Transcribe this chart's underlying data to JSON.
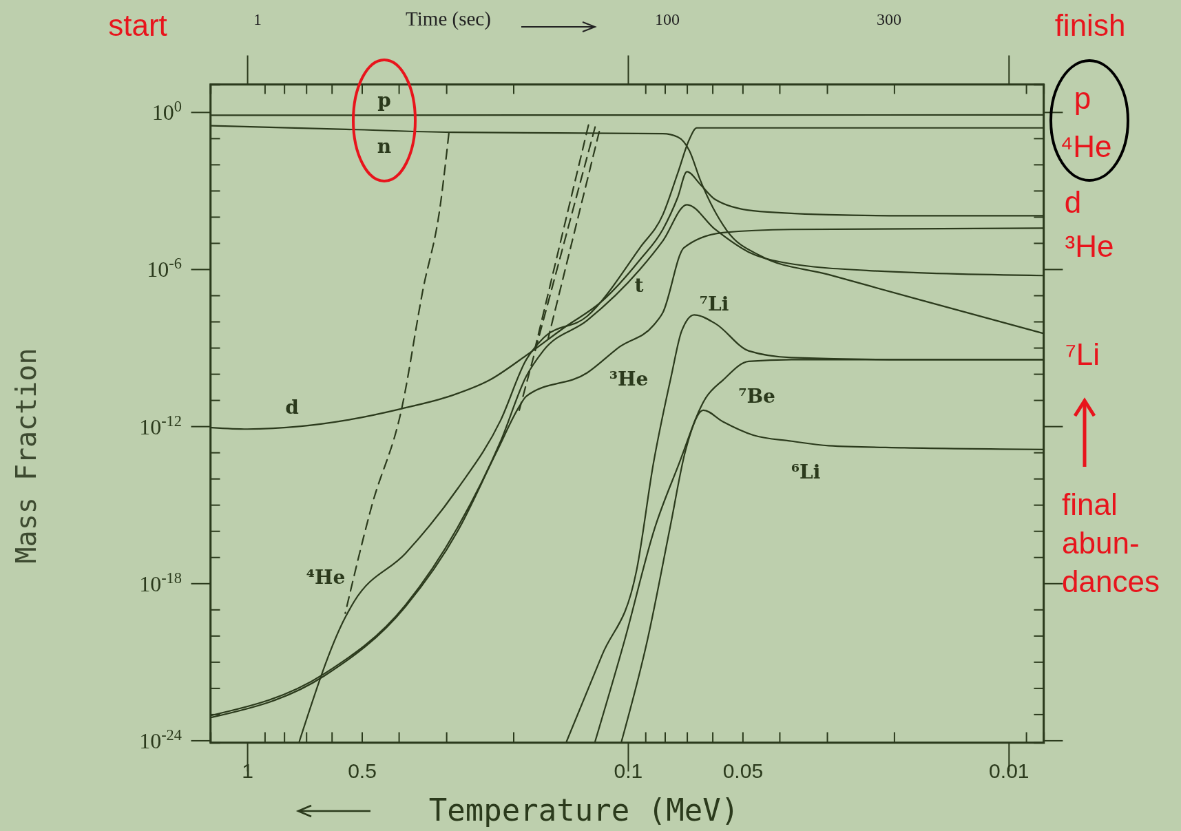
{
  "chart_data": {
    "type": "line",
    "log": "xy",
    "xlabel": "Temperature (MeV)",
    "ylabel": "Mass Fraction",
    "xlim": [
      1.25,
      0.0081
    ],
    "ylim": [
      8.3e-25,
      11.5
    ],
    "xticks": [
      1,
      {
        "value": 0.9,
        "label": null
      },
      {
        "value": 0.8,
        "label": null
      },
      {
        "value": 0.7,
        "label": null
      },
      {
        "value": 0.6,
        "label": null
      },
      0.5,
      {
        "value": 0.4,
        "label": null
      },
      {
        "value": 0.3,
        "label": null
      },
      {
        "value": 0.2,
        "label": null
      },
      0.1,
      {
        "value": 0.09,
        "label": null
      },
      {
        "value": 0.08,
        "label": null
      },
      {
        "value": 0.07,
        "label": null
      },
      {
        "value": 0.06,
        "label": null
      },
      0.05,
      {
        "value": 0.04,
        "label": null
      },
      {
        "value": 0.03,
        "label": null
      },
      {
        "value": 0.02,
        "label": null
      },
      0.01,
      {
        "value": 0.009,
        "label": null
      }
    ],
    "yticks": [
      {
        "value": 1,
        "label": "10$^{0}$"
      },
      {
        "value": 0.1,
        "label": null
      },
      {
        "value": 0.01,
        "label": null
      },
      {
        "value": 0.001,
        "label": null
      },
      {
        "value": 0.0001,
        "label": null
      },
      {
        "value": 1e-05,
        "label": null
      },
      {
        "value": 1e-06,
        "label": "10$^{-6}$"
      },
      {
        "value": 1e-07,
        "label": null
      },
      {
        "value": 1e-08,
        "label": null
      },
      {
        "value": 1e-09,
        "label": null
      },
      {
        "value": 1e-10,
        "label": null
      },
      {
        "value": 1e-11,
        "label": null
      },
      {
        "value": 1e-12,
        "label": "10$^{-12}$"
      },
      {
        "value": 1e-13,
        "label": null
      },
      {
        "value": 1e-14,
        "label": null
      },
      {
        "value": 1e-15,
        "label": null
      },
      {
        "value": 1e-16,
        "label": null
      },
      {
        "value": 1e-17,
        "label": null
      },
      {
        "value": 1e-18,
        "label": "10$^{-18}$"
      },
      {
        "value": 1e-19,
        "label": null
      },
      {
        "value": 1e-20,
        "label": null
      },
      {
        "value": 1e-21,
        "label": null
      },
      {
        "value": 1e-22,
        "label": null
      },
      {
        "value": 1e-23,
        "label": null
      },
      {
        "value": 1e-24,
        "label": "10$^{-24}$"
      }
    ],
    "series": [
      {
        "name": "p",
        "color": "#2b3a1c",
        "x": [
          1.24,
          0.1,
          0.0081
        ],
        "values": [
          0.76,
          0.77,
          0.78
        ]
      },
      {
        "name": "n",
        "color": "#2b3a1c",
        "x": [
          1.24,
          0.55,
          0.29,
          0.081,
          0.074,
          0.069,
          0.0645,
          0.055,
          0.0448,
          0.0297,
          0.0172,
          0.0081
        ],
        "values": [
          0.3,
          0.22,
          0.17,
          0.15,
          0.112,
          0.034,
          0.0024,
          3e-05,
          3.2e-06,
          6.2e-07,
          6.9e-08,
          3.5e-09
        ]
      },
      {
        "name": "d",
        "color": "#2b3a1c",
        "x": [
          1.24,
          1.0,
          0.723,
          0.55,
          0.393,
          0.29,
          0.231,
          0.185,
          0.147,
          0.117,
          0.093,
          0.081,
          0.074,
          0.07,
          0.0645,
          0.059,
          0.0469,
          0.0297,
          0.0188,
          0.0081
        ],
        "values": [
          8.9e-13,
          7.8e-13,
          1e-12,
          1.7e-12,
          4.7e-12,
          1.5e-11,
          5.8e-11,
          5.1e-10,
          5.9e-09,
          6e-08,
          2.3e-06,
          3.3e-05,
          0.00056,
          0.0053,
          0.0017,
          0.00046,
          0.00017,
          0.00012,
          0.00011,
          0.00011
        ]
      },
      {
        "name": "t",
        "color": "#2b3a1c",
        "x": [
          1.24,
          0.628,
          0.384,
          0.28,
          0.216,
          0.185,
          0.167,
          0.128,
          0.093,
          0.081,
          0.07,
          0.059,
          0.0482,
          0.0391,
          0.0221,
          0.0081
        ],
        "values": [
          9.1e-24,
          3.5e-22,
          1.5e-19,
          1.4e-16,
          2.7e-13,
          8.1e-11,
          7.6e-10,
          1.1e-08,
          9.8e-07,
          1.2e-05,
          0.00029,
          3.3e-05,
          4.5e-06,
          1.8e-06,
          8.5e-07,
          5.7e-07
        ]
      },
      {
        "name": "³He",
        "color": "#2b3a1c",
        "x": [
          1.24,
          0.628,
          0.384,
          0.28,
          0.221,
          0.193,
          0.185,
          0.128,
          0.105,
          0.0857,
          0.081,
          0.0713,
          0.0563,
          0.0372,
          0.0081
        ],
        "values": [
          7.6e-24,
          2.9e-22,
          1.3e-19,
          1e-16,
          1.1e-13,
          5.7e-12,
          1.4e-11,
          1.1e-10,
          1.1e-09,
          7.2e-09,
          2.2e-08,
          6.6e-06,
          2.5e-05,
          3.3e-05,
          3.7e-05
        ]
      },
      {
        "name": "⁴He",
        "color": "#2b3a1c",
        "x": [
          0.73,
          0.553,
          0.523,
          0.384,
          0.28,
          0.216,
          0.185,
          0.167,
          0.128,
          0.093,
          0.081,
          0.074,
          0.069,
          0.066,
          0.0469,
          0.0081
        ],
        "values": [
          9.1e-25,
          5e-20,
          2.1e-19,
          1.4e-17,
          4.2e-15,
          1.7e-12,
          3.5e-10,
          2.3e-09,
          1.6e-08,
          6.6e-06,
          0.00012,
          0.0047,
          0.091,
          0.25,
          0.25,
          0.25
        ]
      },
      {
        "name": "⁷Li",
        "color": "#2b3a1c",
        "x": [
          0.145,
          0.117,
          0.095,
          0.0857,
          0.077,
          0.0723,
          0.067,
          0.0589,
          0.0482,
          0.0372,
          0.0188,
          0.0081
        ],
        "values": [
          9.1e-25,
          1.8e-21,
          3e-18,
          4e-14,
          8.1e-11,
          4.3e-09,
          1.8e-08,
          8.3e-09,
          7.6e-10,
          4.2e-10,
          3.5e-10,
          3.5e-10
        ]
      },
      {
        "name": "⁷Be",
        "color": "#2b3a1c",
        "x": [
          0.122,
          0.102,
          0.0849,
          0.074,
          0.0625,
          0.0563,
          0.0482,
          0.0372,
          0.0188,
          0.0081
        ],
        "values": [
          9.1e-25,
          6.9e-21,
          1.4e-16,
          2.8e-14,
          1.2e-11,
          5.8e-11,
          3e-10,
          3.5e-10,
          3.5e-10,
          3.5e-10
        ]
      },
      {
        "name": "⁶Li",
        "color": "#2b3a1c",
        "x": [
          0.104,
          0.0889,
          0.0775,
          0.0707,
          0.0634,
          0.0563,
          0.0469,
          0.0372,
          0.0297,
          0.0188,
          0.0081
        ],
        "values": [
          9.1e-25,
          6.9e-21,
          1.4e-16,
          1.1e-13,
          4.1e-12,
          1.5e-12,
          4.6e-13,
          2.7e-13,
          1.8e-13,
          1.5e-13,
          1.3e-13
        ]
      },
      {
        "color": "#2b3a1c",
        "line_style": "dashed",
        "x": [
          0.2955,
          0.311,
          0.346,
          0.393,
          0.471,
          0.553
        ],
        "values": [
          0.152,
          0.00029,
          1.5e-07,
          4.7e-12,
          9.1e-16,
          7.2e-20
        ]
      },
      {
        "color": "#2b3a1c",
        "line_style": "dashed",
        "x": [
          0.127,
          0.175
        ],
        "values": [
          0.32,
          1.1e-09
        ]
      },
      {
        "color": "#2b3a1c",
        "line_style": "dashed",
        "x": [
          0.119,
          0.162
        ],
        "values": [
          0.18,
          2.3e-09
        ]
      },
      {
        "color": "#2b3a1c",
        "line_style": "dashed",
        "x": [
          0.122,
          0.193
        ],
        "values": [
          0.27,
          4.1e-12
        ]
      }
    ],
    "annotations": [
      "start",
      "finish",
      "p",
      "⁴He",
      "d",
      "³He",
      "⁷Li",
      "final\nabun-\ndances",
      "Time (sec)",
      "1",
      "100",
      "300"
    ]
  }
}
